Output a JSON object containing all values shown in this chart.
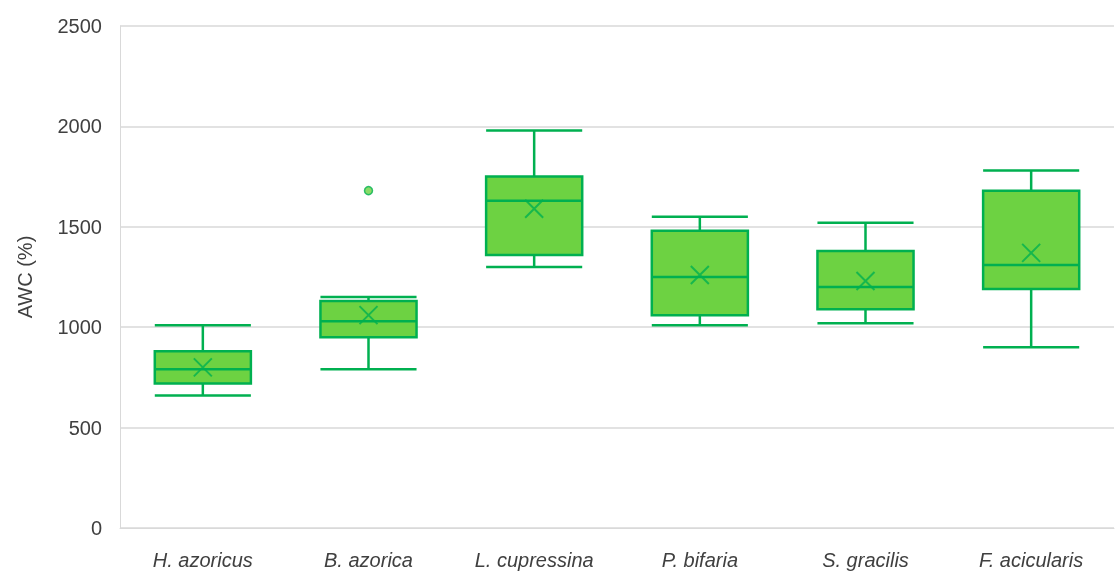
{
  "chart_data": {
    "type": "box",
    "ylabel": "AWC (%)",
    "categories": [
      "H. azoricus",
      "B. azorica",
      "L. cupressina",
      "P. bifaria",
      "S. gracilis",
      "F. acicularis"
    ],
    "boxes": [
      {
        "low": 660,
        "q1": 720,
        "median": 790,
        "q3": 880,
        "high": 1010,
        "mean": 800
      },
      {
        "low": 790,
        "q1": 950,
        "median": 1030,
        "q3": 1130,
        "high": 1150,
        "mean": 1060,
        "outliers": [
          1680
        ]
      },
      {
        "low": 1300,
        "q1": 1360,
        "median": 1630,
        "q3": 1750,
        "high": 1980,
        "mean": 1590
      },
      {
        "low": 1010,
        "q1": 1060,
        "median": 1250,
        "q3": 1480,
        "high": 1550,
        "mean": 1260
      },
      {
        "low": 1020,
        "q1": 1090,
        "median": 1200,
        "q3": 1380,
        "high": 1520,
        "mean": 1230
      },
      {
        "low": 900,
        "q1": 1190,
        "median": 1310,
        "q3": 1680,
        "high": 1780,
        "mean": 1370
      }
    ],
    "color": "#6dd242",
    "ylim": [
      0,
      2500
    ],
    "yticks": [
      0,
      500,
      1000,
      1500,
      2000,
      2500
    ],
    "grid": "y"
  }
}
